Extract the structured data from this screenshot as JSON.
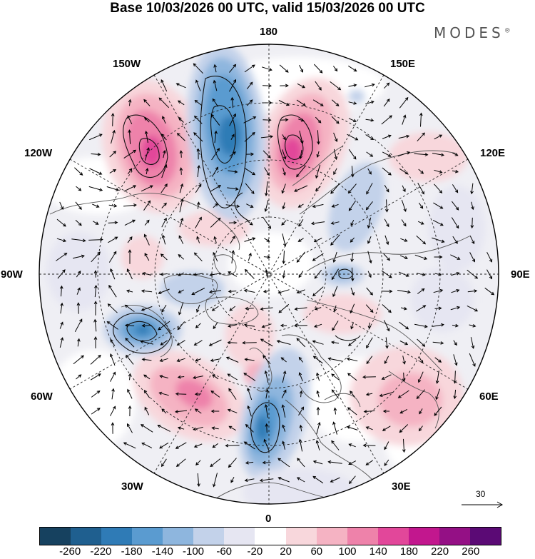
{
  "title": "Base 10/03/2026 00 UTC, valid 15/03/2026 00 UTC",
  "brand": "MODES",
  "brand_mark": "®",
  "longitude_labels": {
    "n180": "180",
    "w150": "150W",
    "e150": "150E",
    "w120": "120W",
    "e120": "120E",
    "w90": "90W",
    "e90": "90E",
    "w60": "60W",
    "e60": "60E",
    "w30": "30W",
    "e30": "30E",
    "s0": "0"
  },
  "reference_vector": {
    "value": "30"
  },
  "colorbar": {
    "colors": [
      "#16415f",
      "#1f5f8f",
      "#2f7bb6",
      "#5a9bd0",
      "#8eb6de",
      "#c3d2ea",
      "#e6e6f2",
      "#ffffff",
      "#f8d7dc",
      "#f5b3c3",
      "#ee82aa",
      "#e2479a",
      "#c2178e",
      "#941085",
      "#5b0a75"
    ],
    "ticks": [
      "-260",
      "-220",
      "-180",
      "-140",
      "-100",
      "-60",
      "-20",
      "20",
      "60",
      "100",
      "140",
      "180",
      "220",
      "260"
    ]
  }
}
